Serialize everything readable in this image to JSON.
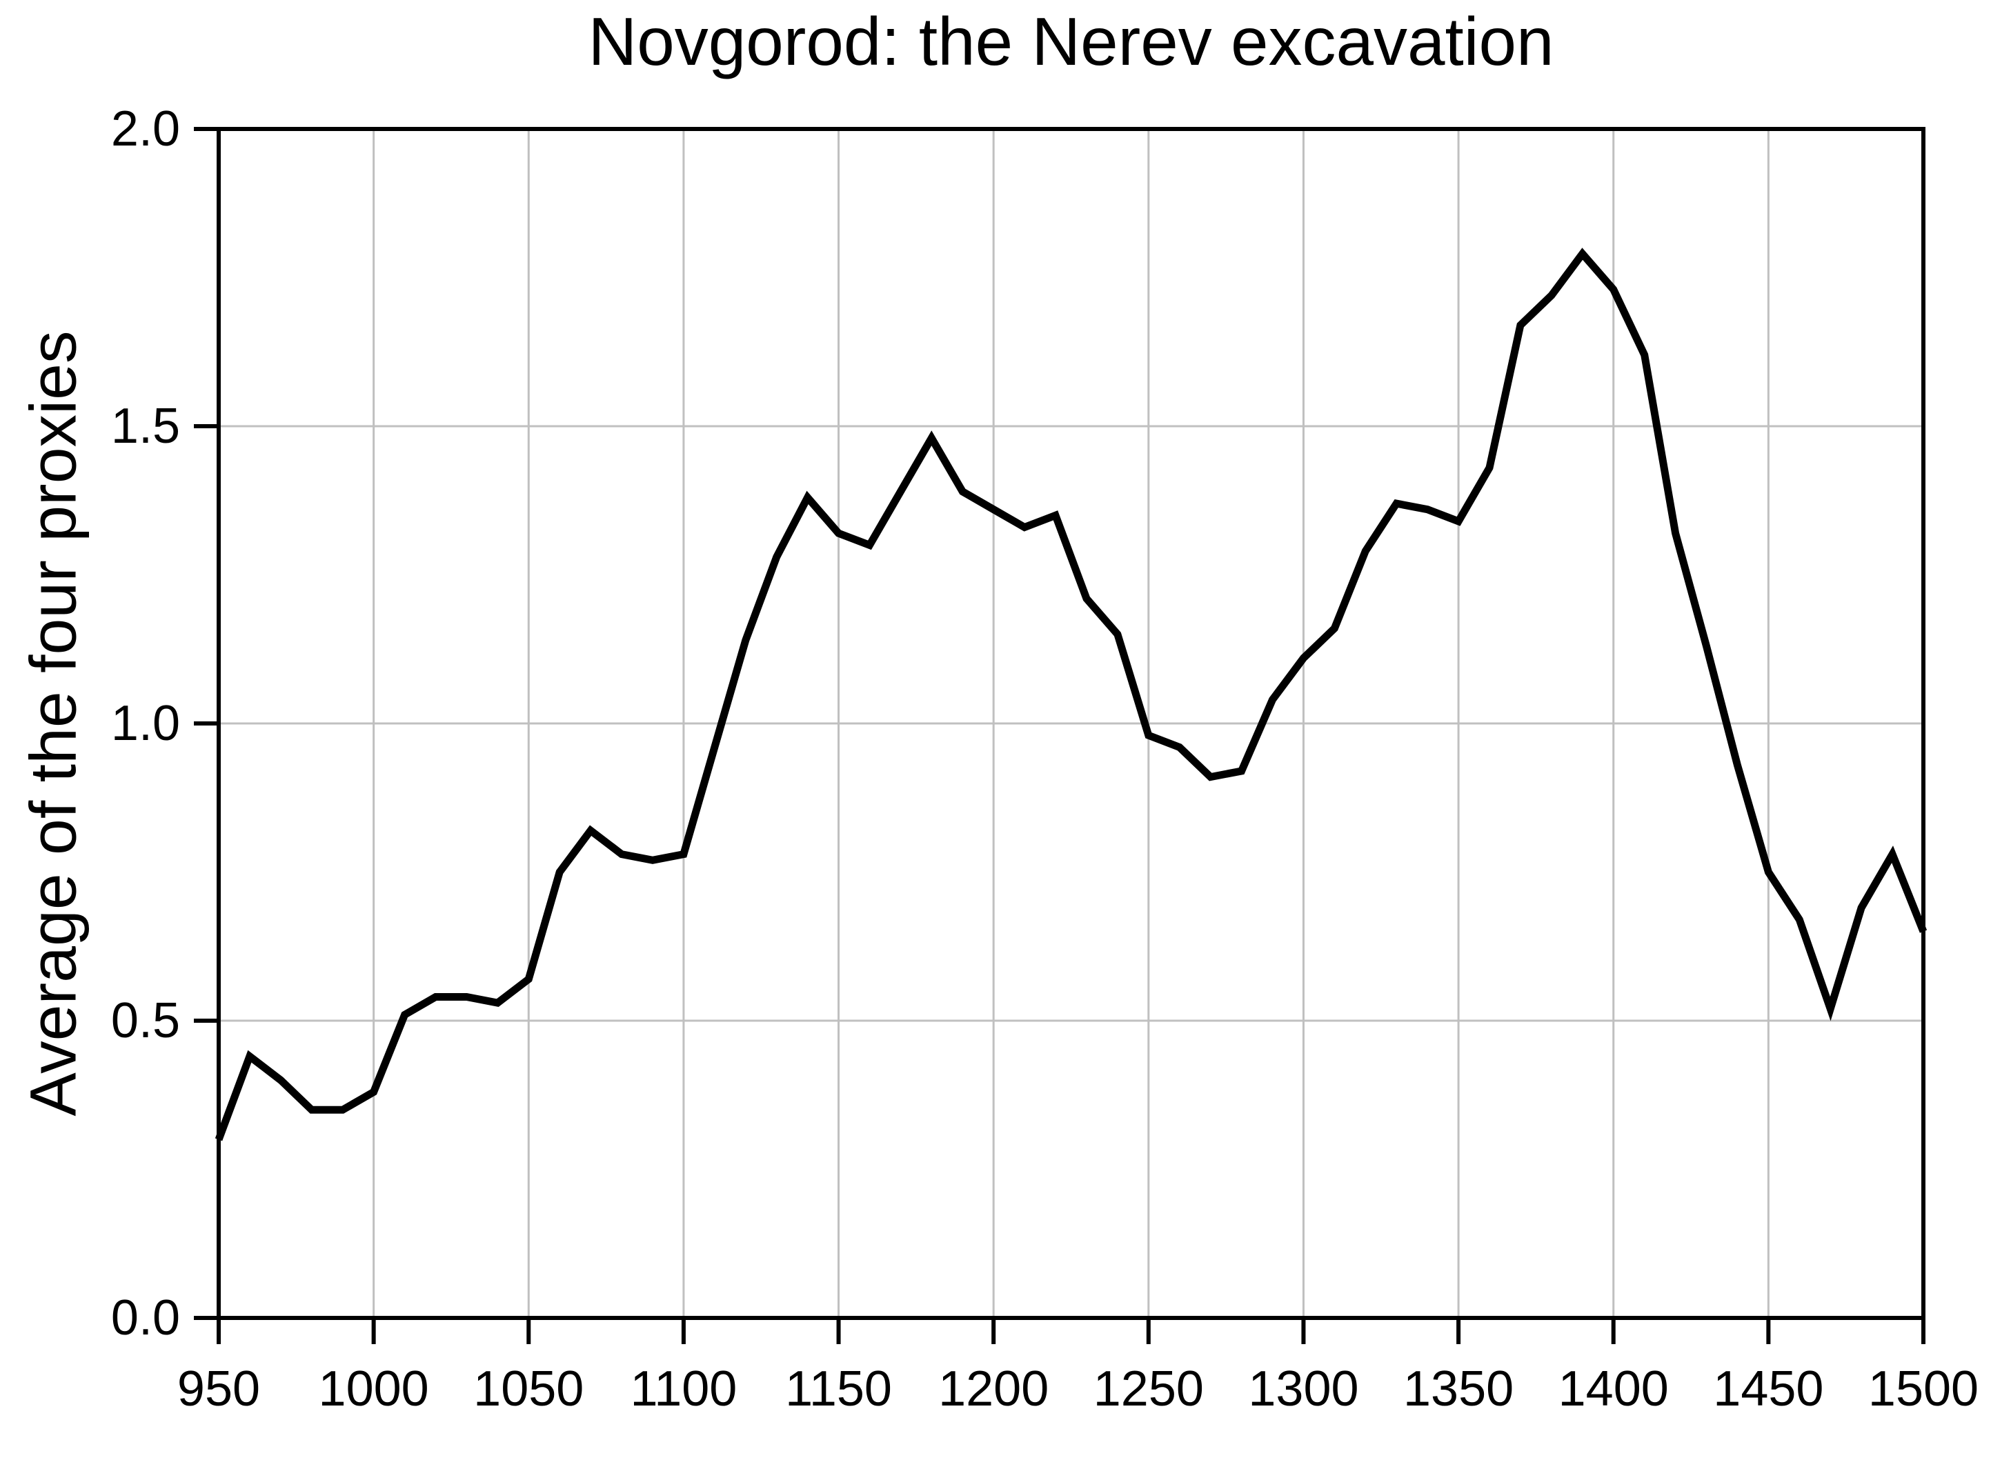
{
  "title": "Novgorod: the Nerev excavation",
  "y_axis_label": "Average of the four proxies",
  "colors": {
    "line": "#000000",
    "grid": "#c0c0c0",
    "axis": "#000000",
    "background": "#ffffff"
  },
  "chart_data": {
    "type": "line",
    "title": "Novgorod: the Nerev excavation",
    "xlabel": "",
    "ylabel": "Average of the four proxies",
    "xlim": [
      950,
      1500
    ],
    "ylim": [
      0.0,
      2.0
    ],
    "x_ticks": [
      950,
      1000,
      1050,
      1100,
      1150,
      1200,
      1250,
      1300,
      1350,
      1400,
      1450,
      1500
    ],
    "y_ticks": [
      0.0,
      0.5,
      1.0,
      1.5,
      2.0
    ],
    "y_tick_labels": [
      "0.0",
      "0.5",
      "1.0",
      "1.5",
      "2.0"
    ],
    "grid": true,
    "legend_position": "none",
    "series_name": "Average of the four proxies",
    "x": [
      950,
      960,
      970,
      980,
      990,
      1000,
      1010,
      1020,
      1030,
      1040,
      1050,
      1060,
      1070,
      1080,
      1090,
      1100,
      1110,
      1120,
      1130,
      1140,
      1150,
      1160,
      1170,
      1180,
      1190,
      1200,
      1210,
      1220,
      1230,
      1240,
      1250,
      1260,
      1270,
      1280,
      1290,
      1300,
      1310,
      1320,
      1330,
      1340,
      1350,
      1360,
      1370,
      1380,
      1390,
      1400,
      1410,
      1420,
      1430,
      1440,
      1450,
      1460,
      1470,
      1480,
      1490,
      1500
    ],
    "values": [
      0.3,
      0.44,
      0.4,
      0.35,
      0.35,
      0.38,
      0.51,
      0.54,
      0.54,
      0.53,
      0.57,
      0.75,
      0.82,
      0.78,
      0.77,
      0.78,
      0.96,
      1.14,
      1.28,
      1.38,
      1.32,
      1.3,
      1.39,
      1.48,
      1.39,
      1.36,
      1.33,
      1.35,
      1.21,
      1.15,
      0.98,
      0.96,
      0.91,
      0.92,
      1.04,
      1.11,
      1.16,
      1.29,
      1.37,
      1.36,
      1.34,
      1.43,
      1.67,
      1.72,
      1.79,
      1.73,
      1.62,
      1.32,
      1.13,
      0.93,
      0.75,
      0.67,
      0.52,
      0.69,
      0.78,
      0.65
    ]
  }
}
